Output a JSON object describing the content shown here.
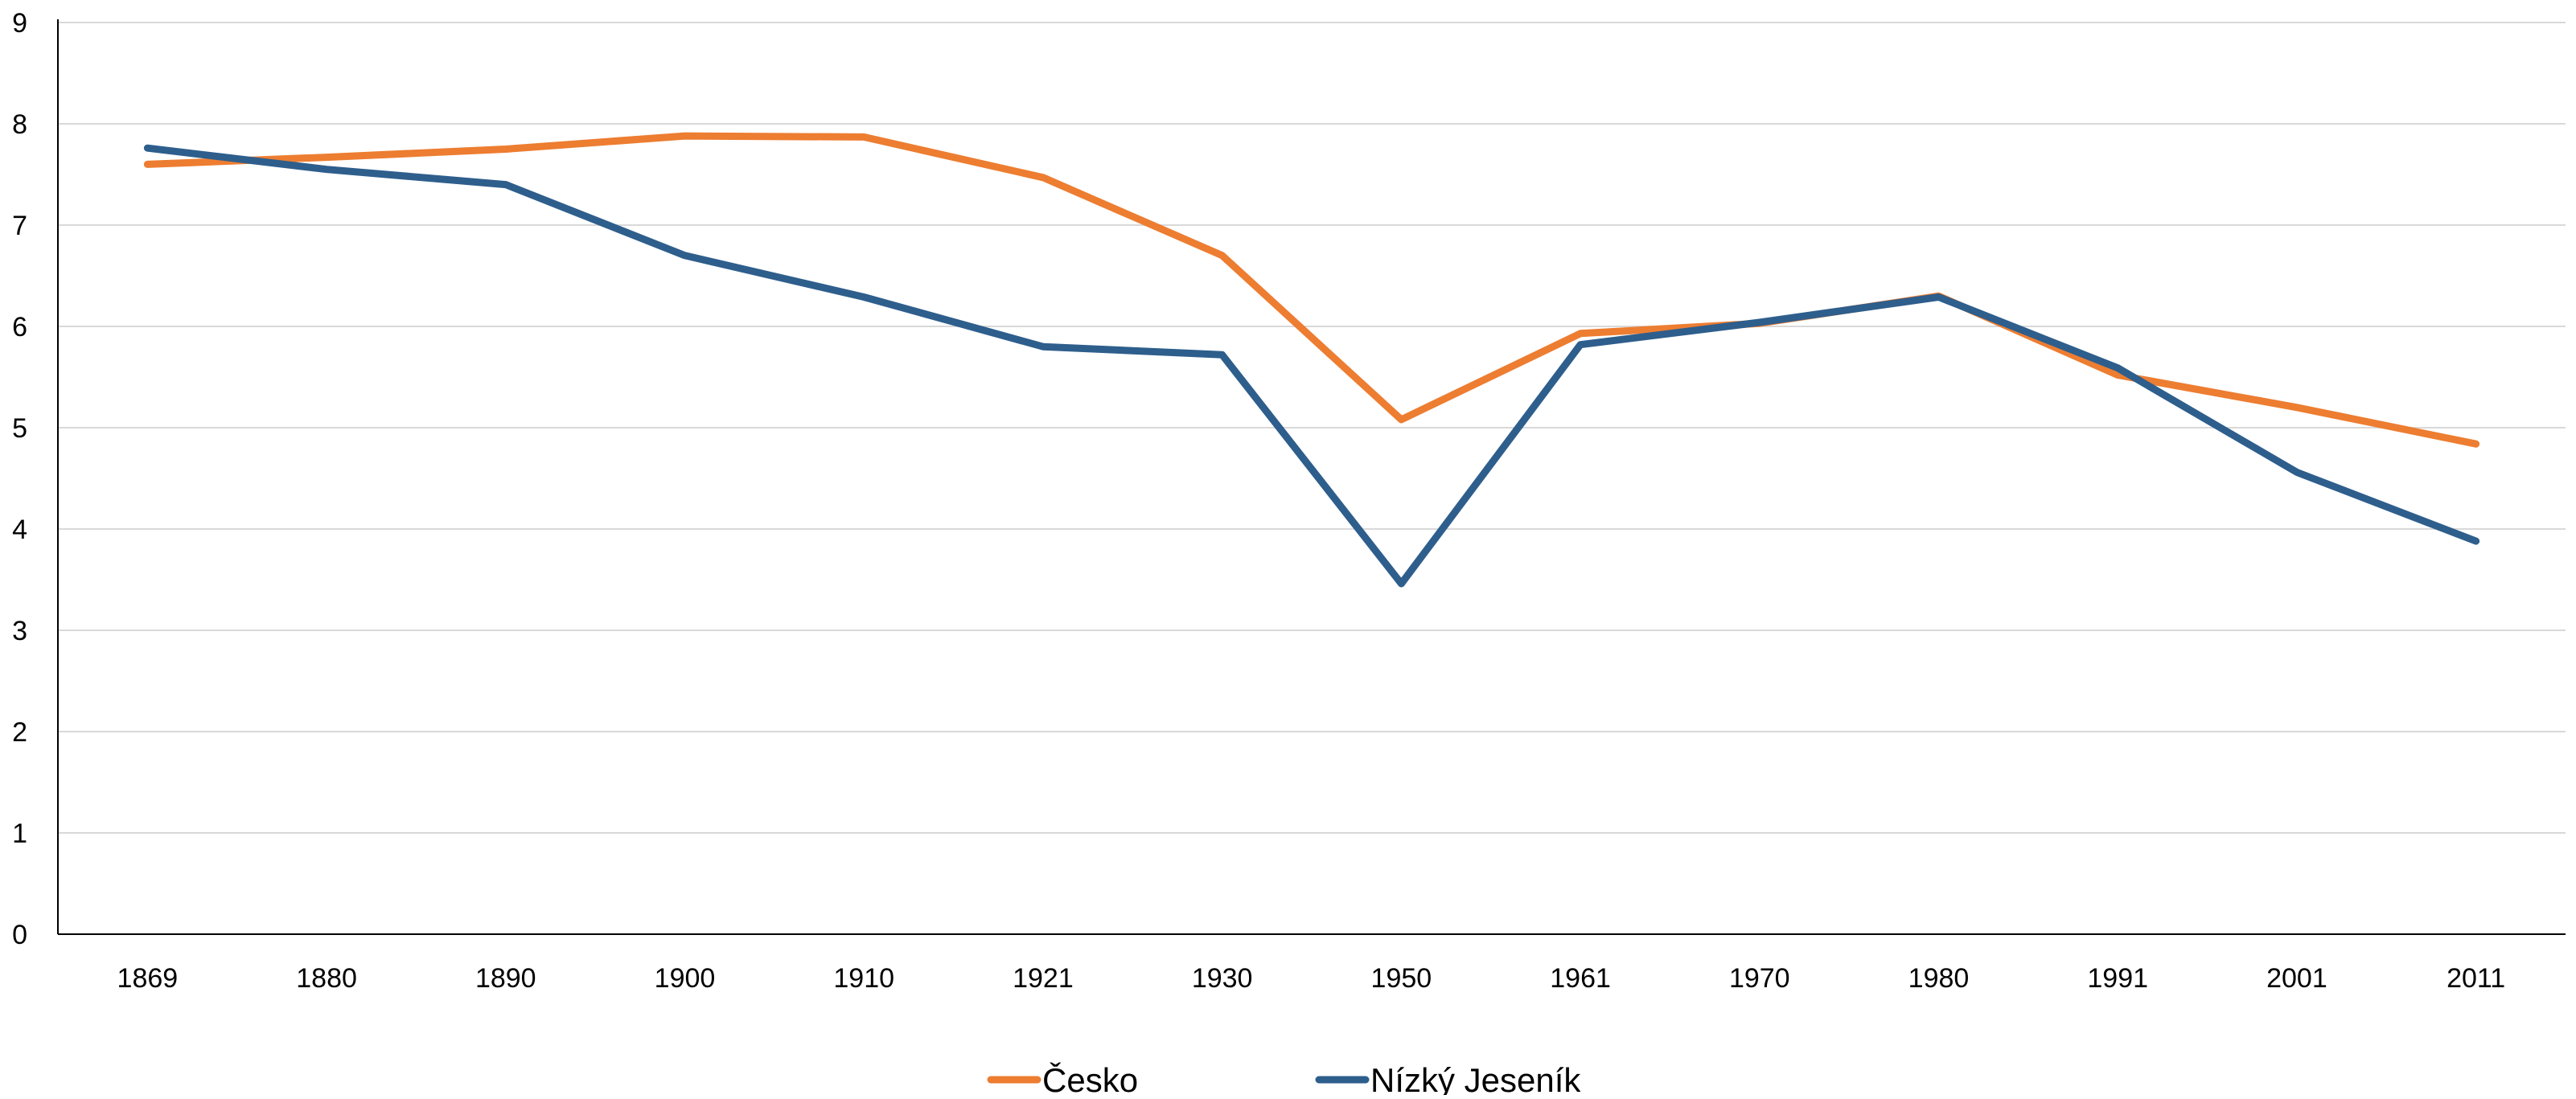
{
  "chart_data": {
    "type": "line",
    "title": "",
    "xlabel": "",
    "ylabel": "",
    "categories": [
      "1869",
      "1880",
      "1890",
      "1900",
      "1910",
      "1921",
      "1930",
      "1950",
      "1961",
      "1970",
      "1980",
      "1991",
      "2001",
      "2011"
    ],
    "ylim": [
      0,
      9
    ],
    "y_ticks": [
      "0",
      "1",
      "2",
      "3",
      "4",
      "5",
      "6",
      "7",
      "8",
      "9"
    ],
    "grid": true,
    "legend_position": "bottom",
    "series": [
      {
        "name": "Česko",
        "color": "#ED7D31",
        "values": [
          7.6,
          7.67,
          7.75,
          7.88,
          7.87,
          7.47,
          6.7,
          5.08,
          5.93,
          6.03,
          6.3,
          5.52,
          5.2,
          4.84
        ]
      },
      {
        "name": "Nízký Jeseník",
        "color": "#2E5E8C",
        "values": [
          7.76,
          7.55,
          7.4,
          6.7,
          6.29,
          5.8,
          5.72,
          3.46,
          5.82,
          6.04,
          6.29,
          5.59,
          4.56,
          3.88
        ]
      }
    ]
  }
}
